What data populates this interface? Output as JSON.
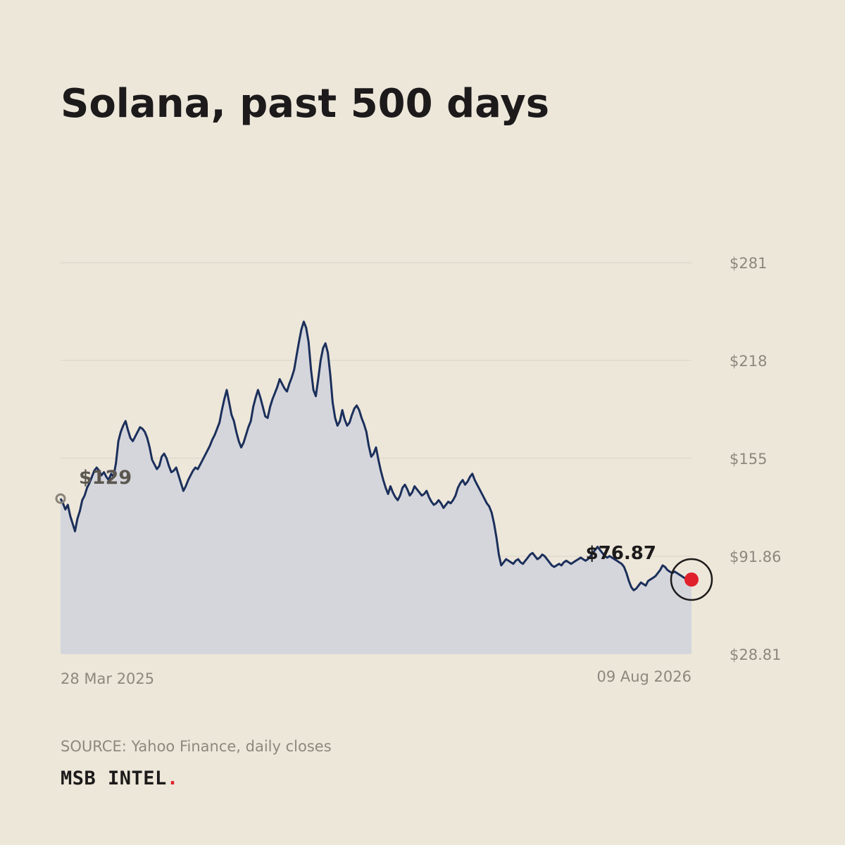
{
  "chart_data": {
    "type": "area",
    "title": "Solana, past 500 days",
    "source": "SOURCE: Yahoo Finance, daily closes",
    "brand": {
      "name": "MSB INTEL",
      "mark": "."
    },
    "x_start_label": "28 Mar 2025",
    "x_end_label": "09 Aug 2026",
    "y_ticks": [
      {
        "value": 281,
        "label": "$281"
      },
      {
        "value": 218,
        "label": "$218"
      },
      {
        "value": 155,
        "label": "$155"
      },
      {
        "value": 91.86,
        "label": "$91.86"
      },
      {
        "value": 28.81,
        "label": "$28.81"
      }
    ],
    "ylim": [
      28.81,
      281
    ],
    "grid": true,
    "start_label": "$129",
    "end_label": "$76.87",
    "start_value": 129,
    "end_value": 76.87,
    "colors": {
      "line": "#1b2f5b",
      "area": "#d5d6dc",
      "end_dot": "#e0202a",
      "start_dot": "#8a8478",
      "grid": "#d9d3c8",
      "tick": "#8e877d"
    },
    "series": [
      {
        "values": [
          129,
          126,
          122,
          125,
          118,
          113,
          108,
          116,
          121,
          128,
          131,
          136,
          139,
          143,
          147,
          149,
          147,
          144,
          146,
          143,
          141,
          145,
          143,
          152,
          166,
          172,
          176,
          179,
          173,
          168,
          166,
          169,
          172,
          175,
          174,
          172,
          168,
          162,
          154,
          151,
          148,
          150,
          156,
          158,
          155,
          150,
          146,
          147,
          149,
          144,
          139,
          134,
          137,
          141,
          144,
          147,
          149,
          148,
          151,
          154,
          157,
          160,
          163,
          167,
          170,
          174,
          178,
          186,
          193,
          199,
          191,
          183,
          179,
          172,
          166,
          162,
          165,
          170,
          175,
          179,
          188,
          194,
          199,
          194,
          188,
          182,
          181,
          188,
          193,
          197,
          201,
          206,
          203,
          200,
          198,
          203,
          207,
          212,
          221,
          230,
          238,
          243,
          239,
          230,
          212,
          199,
          195,
          206,
          218,
          226,
          229,
          223,
          209,
          191,
          181,
          176,
          179,
          186,
          180,
          176,
          178,
          183,
          187,
          189,
          186,
          181,
          177,
          172,
          163,
          156,
          158,
          162,
          154,
          147,
          141,
          136,
          132,
          137,
          133,
          130,
          128,
          131,
          136,
          138,
          135,
          131,
          133,
          137,
          135,
          133,
          131,
          132,
          134,
          130,
          127,
          125,
          126,
          128,
          126,
          123,
          125,
          127,
          126,
          128,
          131,
          136,
          139,
          141,
          138,
          140,
          143,
          145,
          141,
          138,
          135,
          132,
          129,
          126,
          124,
          120,
          113,
          104,
          93,
          86,
          88,
          90,
          89,
          88,
          87,
          89,
          90,
          88,
          87,
          89,
          91,
          93,
          94,
          92,
          90,
          91,
          93,
          92,
          90,
          88,
          86,
          85,
          86,
          87,
          86,
          88,
          89,
          88,
          87,
          88,
          89,
          90,
          91,
          90,
          89,
          90,
          92,
          94,
          96,
          98,
          96,
          94,
          92,
          91,
          92,
          91,
          90,
          89,
          88,
          87,
          85,
          81,
          76,
          72,
          70,
          71,
          73,
          75,
          74,
          73,
          76,
          77,
          78,
          79,
          81,
          83,
          86,
          85,
          83,
          82,
          81,
          82,
          81,
          80,
          79,
          78,
          77.5,
          77,
          76.87
        ]
      }
    ]
  }
}
